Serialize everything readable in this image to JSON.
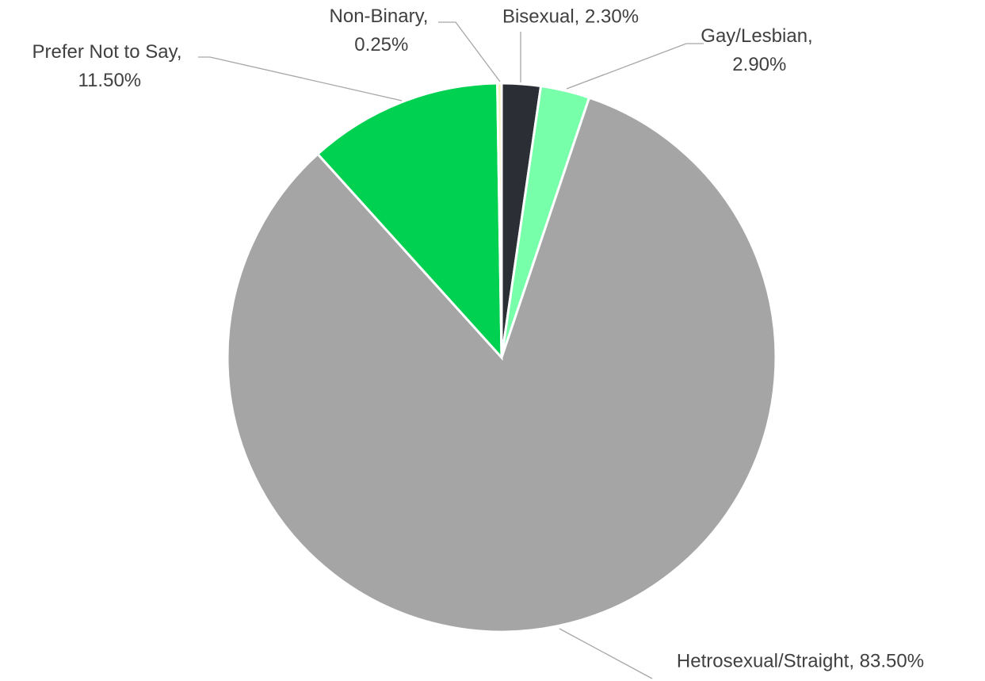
{
  "chart_data": {
    "type": "pie",
    "categories": [
      "Bisexual",
      "Gay/Lesbian",
      "Hetrosexual/Straight",
      "Prefer Not to Say",
      "Non-Binary"
    ],
    "values": [
      2.3,
      2.9,
      83.5,
      11.5,
      0.25
    ],
    "value_labels": [
      "Bisexual, 2.30%",
      "Gay/Lesbian, 2.90%",
      "Hetrosexual/Straight, 83.50%",
      "Prefer Not to Say, 11.50%",
      "Non-Binary, 0.25%"
    ],
    "colors": [
      "#2b2e35",
      "#77ffaa",
      "#a5a5a5",
      "#00d150",
      "#f3f3b5"
    ]
  }
}
